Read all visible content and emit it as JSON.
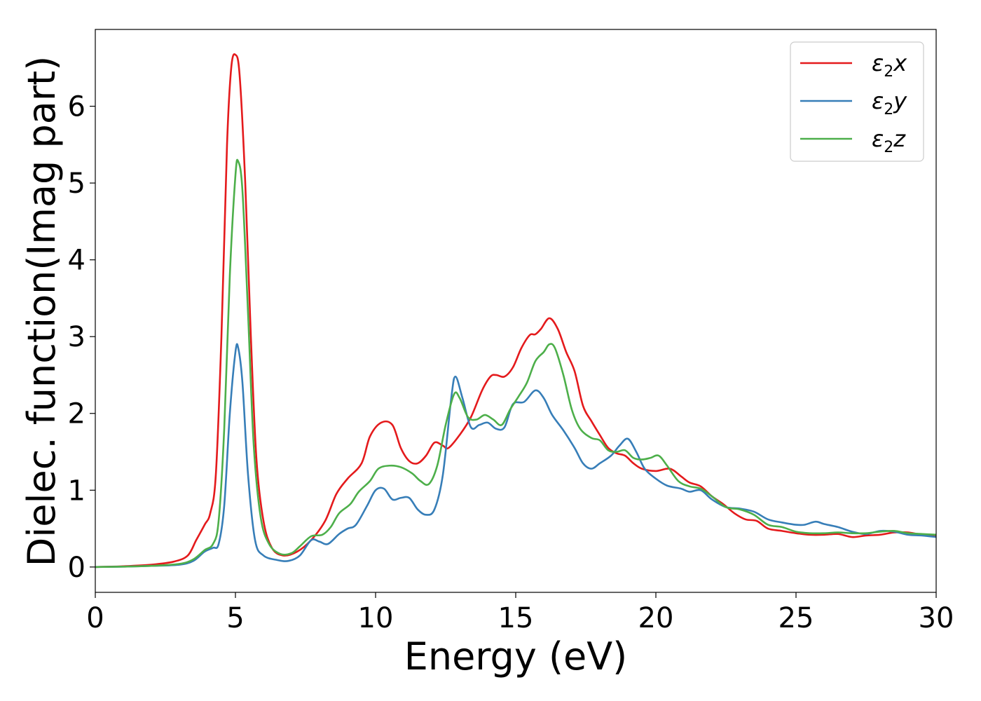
{
  "chart_data": {
    "type": "line",
    "xlabel": "Energy (eV)",
    "ylabel": "Dielec. function(Imag part)",
    "xlim": [
      0,
      30
    ],
    "ylim": [
      -0.33,
      7.0
    ],
    "xticks": [
      0,
      5,
      10,
      15,
      20,
      25,
      30
    ],
    "yticks": [
      0,
      1,
      2,
      3,
      4,
      5,
      6
    ],
    "grid": false,
    "legend_position": "top-right",
    "series": [
      {
        "name": "ε2x",
        "legend": {
          "base": "ε",
          "sub": "2",
          "suffix": "x"
        },
        "color": "#e41a1c",
        "points": [
          [
            0,
            0
          ],
          [
            1,
            0.01
          ],
          [
            2,
            0.03
          ],
          [
            2.8,
            0.07
          ],
          [
            3.3,
            0.15
          ],
          [
            3.6,
            0.35
          ],
          [
            3.9,
            0.55
          ],
          [
            4.1,
            0.7
          ],
          [
            4.3,
            1.2
          ],
          [
            4.5,
            3.0
          ],
          [
            4.7,
            5.5
          ],
          [
            4.85,
            6.5
          ],
          [
            5.0,
            6.67
          ],
          [
            5.15,
            6.4
          ],
          [
            5.35,
            5.0
          ],
          [
            5.55,
            3.0
          ],
          [
            5.75,
            1.4
          ],
          [
            6.0,
            0.6
          ],
          [
            6.3,
            0.25
          ],
          [
            6.7,
            0.15
          ],
          [
            7.2,
            0.2
          ],
          [
            7.7,
            0.35
          ],
          [
            8.2,
            0.6
          ],
          [
            8.6,
            0.95
          ],
          [
            9.0,
            1.15
          ],
          [
            9.5,
            1.35
          ],
          [
            9.8,
            1.7
          ],
          [
            10.2,
            1.88
          ],
          [
            10.6,
            1.85
          ],
          [
            10.9,
            1.55
          ],
          [
            11.2,
            1.38
          ],
          [
            11.5,
            1.35
          ],
          [
            11.8,
            1.45
          ],
          [
            12.1,
            1.62
          ],
          [
            12.4,
            1.58
          ],
          [
            12.6,
            1.55
          ],
          [
            13.0,
            1.72
          ],
          [
            13.4,
            1.95
          ],
          [
            13.8,
            2.3
          ],
          [
            14.1,
            2.48
          ],
          [
            14.3,
            2.5
          ],
          [
            14.6,
            2.48
          ],
          [
            14.9,
            2.6
          ],
          [
            15.2,
            2.85
          ],
          [
            15.5,
            3.02
          ],
          [
            15.7,
            3.03
          ],
          [
            15.9,
            3.1
          ],
          [
            16.2,
            3.24
          ],
          [
            16.5,
            3.1
          ],
          [
            16.8,
            2.8
          ],
          [
            17.1,
            2.55
          ],
          [
            17.4,
            2.1
          ],
          [
            17.7,
            1.9
          ],
          [
            18.0,
            1.72
          ],
          [
            18.3,
            1.55
          ],
          [
            18.6,
            1.48
          ],
          [
            18.9,
            1.45
          ],
          [
            19.2,
            1.35
          ],
          [
            19.5,
            1.28
          ],
          [
            20.0,
            1.25
          ],
          [
            20.5,
            1.28
          ],
          [
            20.9,
            1.18
          ],
          [
            21.2,
            1.1
          ],
          [
            21.6,
            1.05
          ],
          [
            22.0,
            0.92
          ],
          [
            22.4,
            0.82
          ],
          [
            22.8,
            0.7
          ],
          [
            23.2,
            0.62
          ],
          [
            23.6,
            0.6
          ],
          [
            24.0,
            0.5
          ],
          [
            24.5,
            0.47
          ],
          [
            25.0,
            0.44
          ],
          [
            25.5,
            0.42
          ],
          [
            26.0,
            0.42
          ],
          [
            26.5,
            0.43
          ],
          [
            27.0,
            0.39
          ],
          [
            27.5,
            0.41
          ],
          [
            28.0,
            0.42
          ],
          [
            28.5,
            0.45
          ],
          [
            29.0,
            0.45
          ],
          [
            29.5,
            0.42
          ],
          [
            30.0,
            0.41
          ]
        ]
      },
      {
        "name": "ε2y",
        "legend": {
          "base": "ε",
          "sub": "2",
          "suffix": "y"
        },
        "color": "#377eb8",
        "points": [
          [
            0,
            0
          ],
          [
            1,
            0.005
          ],
          [
            2,
            0.015
          ],
          [
            3.0,
            0.03
          ],
          [
            3.5,
            0.08
          ],
          [
            3.9,
            0.2
          ],
          [
            4.2,
            0.25
          ],
          [
            4.4,
            0.3
          ],
          [
            4.6,
            0.8
          ],
          [
            4.8,
            2.0
          ],
          [
            5.0,
            2.8
          ],
          [
            5.1,
            2.85
          ],
          [
            5.25,
            2.4
          ],
          [
            5.45,
            1.2
          ],
          [
            5.7,
            0.35
          ],
          [
            6.0,
            0.15
          ],
          [
            6.5,
            0.09
          ],
          [
            6.9,
            0.08
          ],
          [
            7.3,
            0.15
          ],
          [
            7.7,
            0.35
          ],
          [
            8.0,
            0.33
          ],
          [
            8.3,
            0.3
          ],
          [
            8.7,
            0.43
          ],
          [
            9.0,
            0.5
          ],
          [
            9.3,
            0.55
          ],
          [
            9.7,
            0.8
          ],
          [
            10.0,
            1.0
          ],
          [
            10.3,
            1.02
          ],
          [
            10.6,
            0.88
          ],
          [
            10.9,
            0.9
          ],
          [
            11.2,
            0.9
          ],
          [
            11.5,
            0.75
          ],
          [
            11.8,
            0.68
          ],
          [
            12.1,
            0.75
          ],
          [
            12.4,
            1.2
          ],
          [
            12.7,
            2.2
          ],
          [
            12.85,
            2.48
          ],
          [
            13.1,
            2.2
          ],
          [
            13.4,
            1.82
          ],
          [
            13.7,
            1.85
          ],
          [
            14.0,
            1.88
          ],
          [
            14.3,
            1.8
          ],
          [
            14.6,
            1.82
          ],
          [
            14.9,
            2.12
          ],
          [
            15.3,
            2.15
          ],
          [
            15.7,
            2.3
          ],
          [
            16.0,
            2.2
          ],
          [
            16.3,
            1.98
          ],
          [
            16.7,
            1.78
          ],
          [
            17.1,
            1.55
          ],
          [
            17.4,
            1.35
          ],
          [
            17.7,
            1.28
          ],
          [
            18.0,
            1.35
          ],
          [
            18.4,
            1.45
          ],
          [
            18.7,
            1.58
          ],
          [
            19.0,
            1.67
          ],
          [
            19.3,
            1.5
          ],
          [
            19.6,
            1.28
          ],
          [
            20.0,
            1.15
          ],
          [
            20.4,
            1.06
          ],
          [
            20.9,
            1.02
          ],
          [
            21.2,
            0.98
          ],
          [
            21.6,
            1.0
          ],
          [
            22.0,
            0.88
          ],
          [
            22.5,
            0.78
          ],
          [
            23.0,
            0.76
          ],
          [
            23.5,
            0.72
          ],
          [
            24.0,
            0.62
          ],
          [
            24.5,
            0.58
          ],
          [
            25.0,
            0.55
          ],
          [
            25.3,
            0.55
          ],
          [
            25.7,
            0.59
          ],
          [
            26.0,
            0.56
          ],
          [
            26.5,
            0.52
          ],
          [
            27.0,
            0.46
          ],
          [
            27.5,
            0.43
          ],
          [
            28.0,
            0.47
          ],
          [
            28.5,
            0.46
          ],
          [
            29.0,
            0.42
          ],
          [
            29.5,
            0.41
          ],
          [
            30.0,
            0.39
          ]
        ]
      },
      {
        "name": "ε2z",
        "legend": {
          "base": "ε",
          "sub": "2",
          "suffix": "z"
        },
        "color": "#4daf4a",
        "points": [
          [
            0,
            0
          ],
          [
            1,
            0.005
          ],
          [
            2,
            0.015
          ],
          [
            3.0,
            0.04
          ],
          [
            3.5,
            0.1
          ],
          [
            3.9,
            0.22
          ],
          [
            4.2,
            0.3
          ],
          [
            4.4,
            0.6
          ],
          [
            4.6,
            1.8
          ],
          [
            4.8,
            3.8
          ],
          [
            5.0,
            5.1
          ],
          [
            5.1,
            5.28
          ],
          [
            5.25,
            4.9
          ],
          [
            5.45,
            3.3
          ],
          [
            5.65,
            1.6
          ],
          [
            5.9,
            0.65
          ],
          [
            6.2,
            0.3
          ],
          [
            6.6,
            0.17
          ],
          [
            7.0,
            0.18
          ],
          [
            7.3,
            0.27
          ],
          [
            7.7,
            0.4
          ],
          [
            8.1,
            0.42
          ],
          [
            8.4,
            0.52
          ],
          [
            8.7,
            0.7
          ],
          [
            9.1,
            0.82
          ],
          [
            9.4,
            0.98
          ],
          [
            9.8,
            1.12
          ],
          [
            10.1,
            1.28
          ],
          [
            10.5,
            1.32
          ],
          [
            10.9,
            1.3
          ],
          [
            11.3,
            1.22
          ],
          [
            11.6,
            1.12
          ],
          [
            11.9,
            1.08
          ],
          [
            12.2,
            1.32
          ],
          [
            12.5,
            1.85
          ],
          [
            12.8,
            2.25
          ],
          [
            13.0,
            2.2
          ],
          [
            13.3,
            1.95
          ],
          [
            13.6,
            1.92
          ],
          [
            13.9,
            1.98
          ],
          [
            14.2,
            1.92
          ],
          [
            14.5,
            1.85
          ],
          [
            14.8,
            2.05
          ],
          [
            15.1,
            2.22
          ],
          [
            15.4,
            2.4
          ],
          [
            15.7,
            2.68
          ],
          [
            16.0,
            2.8
          ],
          [
            16.2,
            2.9
          ],
          [
            16.4,
            2.85
          ],
          [
            16.7,
            2.5
          ],
          [
            17.0,
            2.05
          ],
          [
            17.3,
            1.8
          ],
          [
            17.7,
            1.68
          ],
          [
            18.0,
            1.65
          ],
          [
            18.3,
            1.52
          ],
          [
            18.6,
            1.5
          ],
          [
            18.9,
            1.52
          ],
          [
            19.2,
            1.42
          ],
          [
            19.5,
            1.4
          ],
          [
            19.8,
            1.42
          ],
          [
            20.1,
            1.45
          ],
          [
            20.4,
            1.32
          ],
          [
            20.8,
            1.12
          ],
          [
            21.2,
            1.05
          ],
          [
            21.6,
            1.02
          ],
          [
            22.0,
            0.92
          ],
          [
            22.5,
            0.78
          ],
          [
            23.0,
            0.75
          ],
          [
            23.5,
            0.68
          ],
          [
            24.0,
            0.55
          ],
          [
            24.5,
            0.52
          ],
          [
            25.0,
            0.46
          ],
          [
            25.5,
            0.44
          ],
          [
            26.0,
            0.44
          ],
          [
            26.5,
            0.45
          ],
          [
            27.0,
            0.44
          ],
          [
            27.5,
            0.44
          ],
          [
            28.0,
            0.46
          ],
          [
            28.5,
            0.47
          ],
          [
            29.0,
            0.44
          ],
          [
            29.5,
            0.43
          ],
          [
            30.0,
            0.42
          ]
        ]
      }
    ]
  }
}
